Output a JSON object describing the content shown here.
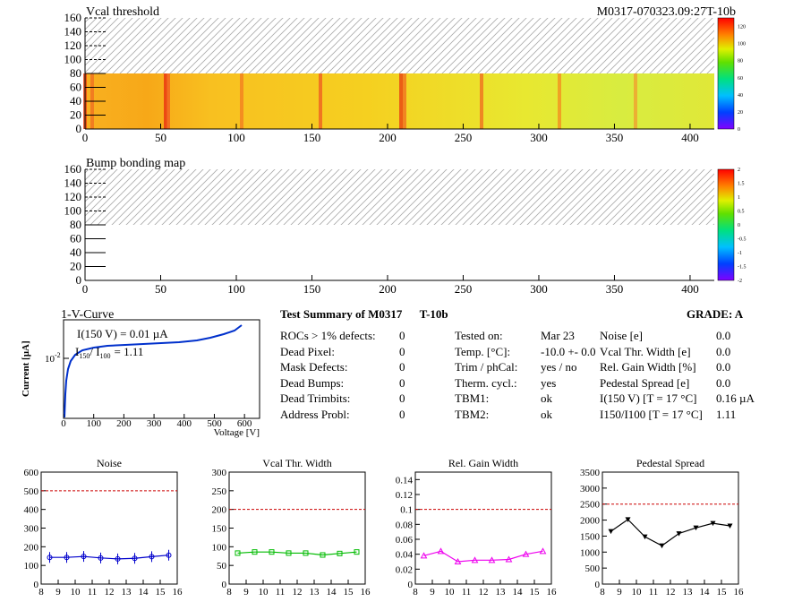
{
  "header": {
    "vcal_title": "Vcal threshold",
    "module_id": "M0317-070323.09:27T-10b",
    "bump_title": "Bump bonding map"
  },
  "map_axes": {
    "x_ticks": [
      "0",
      "50",
      "100",
      "150",
      "200",
      "250",
      "300",
      "350",
      "400"
    ],
    "y_ticks": [
      "0",
      "20",
      "40",
      "60",
      "80",
      "100",
      "120",
      "140",
      "160"
    ],
    "vcal_scale": [
      "0",
      "20",
      "40",
      "60",
      "80",
      "100",
      "120"
    ],
    "bump_scale": [
      "-2",
      "-1.5",
      "-1",
      "-0.5",
      "0",
      "0.5",
      "1",
      "1.5",
      "2"
    ]
  },
  "iv": {
    "title": "1-V-Curve",
    "annotation1": "I(150 V) = 0.01 µA",
    "annotation2_prefix": "I",
    "annotation2_sub1": "150",
    "annotation2_mid": "/ I",
    "annotation2_sub2": "100",
    "annotation2_value": "=  1.11",
    "ylabel": "Current [µA]",
    "xlabel": "Voltage [V]",
    "ytick": "10",
    "ytick_exp": "-2",
    "x_ticks": [
      "0",
      "100",
      "200",
      "300",
      "400",
      "500",
      "600"
    ]
  },
  "summary": {
    "title": "Test Summary of M0317",
    "tag": "T-10b",
    "grade": "GRADE:  A",
    "col1": [
      {
        "label": "ROCs > 1% defects:",
        "value": "0"
      },
      {
        "label": "Dead Pixel:",
        "value": "0"
      },
      {
        "label": "Mask Defects:",
        "value": "0"
      },
      {
        "label": "Dead Bumps:",
        "value": "0"
      },
      {
        "label": "Dead Trimbits:",
        "value": "0"
      },
      {
        "label": "Address Probl:",
        "value": "0"
      }
    ],
    "col2": [
      {
        "label": "Tested on:",
        "value": "Mar 23"
      },
      {
        "label": "Temp. [°C]:",
        "value": "-10.0 +- 0.0"
      },
      {
        "label": "Trim / phCal:",
        "value": "yes / no"
      },
      {
        "label": "Therm. cycl.:",
        "value": "yes"
      },
      {
        "label": "TBM1:",
        "value": "ok"
      },
      {
        "label": "TBM2:",
        "value": "ok"
      }
    ],
    "col3": [
      {
        "label": "Noise [e]",
        "value": "0.0"
      },
      {
        "label": "Vcal Thr. Width [e]",
        "value": "0.0"
      },
      {
        "label": "Rel. Gain Width [%]",
        "value": "0.0"
      },
      {
        "label": "Pedestal Spread [e]",
        "value": "0.0"
      },
      {
        "label": "I(150 V) [T = 17 °C]",
        "value": "0.16 µA"
      },
      {
        "label": "I150/I100   [T = 17 °C]",
        "value": "1.11"
      }
    ]
  },
  "chart_data": [
    {
      "type": "scatter",
      "title": "Noise",
      "x": [
        8.5,
        9.5,
        10.5,
        11.5,
        12.5,
        13.5,
        14.5,
        15.5
      ],
      "y": [
        143,
        143,
        148,
        140,
        135,
        138,
        147,
        155
      ],
      "xlim": [
        8,
        16
      ],
      "ylim": [
        0,
        600
      ],
      "x_ticks": [
        "8",
        "9",
        "10",
        "11",
        "12",
        "13",
        "14",
        "15",
        "16"
      ],
      "y_ticks": [
        "0",
        "100",
        "200",
        "300",
        "400",
        "500",
        "600"
      ],
      "y_tick_values": [
        0,
        100,
        200,
        300,
        400,
        500,
        600
      ],
      "limit": 500,
      "color": "#0000cc",
      "marker": "circle"
    },
    {
      "type": "scatter",
      "title": "Vcal Thr. Width",
      "x": [
        8.5,
        9.5,
        10.5,
        11.5,
        12.5,
        13.5,
        14.5,
        15.5
      ],
      "y": [
        83,
        86,
        86,
        83,
        83,
        78,
        82,
        86
      ],
      "xlim": [
        8,
        16
      ],
      "ylim": [
        0,
        300
      ],
      "x_ticks": [
        "8",
        "9",
        "10",
        "11",
        "12",
        "13",
        "14",
        "15",
        "16"
      ],
      "y_ticks": [
        "0",
        "50",
        "100",
        "150",
        "200",
        "250",
        "300"
      ],
      "y_tick_values": [
        0,
        50,
        100,
        150,
        200,
        250,
        300
      ],
      "limit": 200,
      "color": "#00bb00",
      "marker": "square"
    },
    {
      "type": "line",
      "title": "Rel. Gain Width",
      "x": [
        8.5,
        9.5,
        10.5,
        11.5,
        12.5,
        13.5,
        14.5,
        15.5
      ],
      "y": [
        0.038,
        0.044,
        0.03,
        0.032,
        0.032,
        0.033,
        0.04,
        0.044
      ],
      "xlim": [
        8,
        16
      ],
      "ylim": [
        0,
        0.15
      ],
      "x_ticks": [
        "8",
        "9",
        "10",
        "11",
        "12",
        "13",
        "14",
        "15",
        "16"
      ],
      "y_ticks": [
        "0",
        "0.02",
        "0.04",
        "0.06",
        "0.08",
        "0.1",
        "0.12",
        "0.14"
      ],
      "y_tick_values": [
        0,
        0.02,
        0.04,
        0.06,
        0.08,
        0.1,
        0.12,
        0.14
      ],
      "limit": 0.1,
      "color": "#ee00ee",
      "marker": "triangle-up"
    },
    {
      "type": "line",
      "title": "Pedestal Spread",
      "x": [
        8.5,
        9.5,
        10.5,
        11.5,
        12.5,
        13.5,
        14.5,
        15.5
      ],
      "y": [
        1650,
        2020,
        1480,
        1200,
        1580,
        1760,
        1900,
        1820
      ],
      "xlim": [
        8,
        16
      ],
      "ylim": [
        0,
        3500
      ],
      "x_ticks": [
        "8",
        "9",
        "10",
        "11",
        "12",
        "13",
        "14",
        "15",
        "16"
      ],
      "y_ticks": [
        "0",
        "500",
        "1000",
        "1500",
        "2000",
        "2500",
        "3000",
        "3500"
      ],
      "y_tick_values": [
        0,
        500,
        1000,
        1500,
        2000,
        2500,
        3000,
        3500
      ],
      "limit": 2500,
      "color": "#000000",
      "marker": "triangle-down"
    }
  ]
}
